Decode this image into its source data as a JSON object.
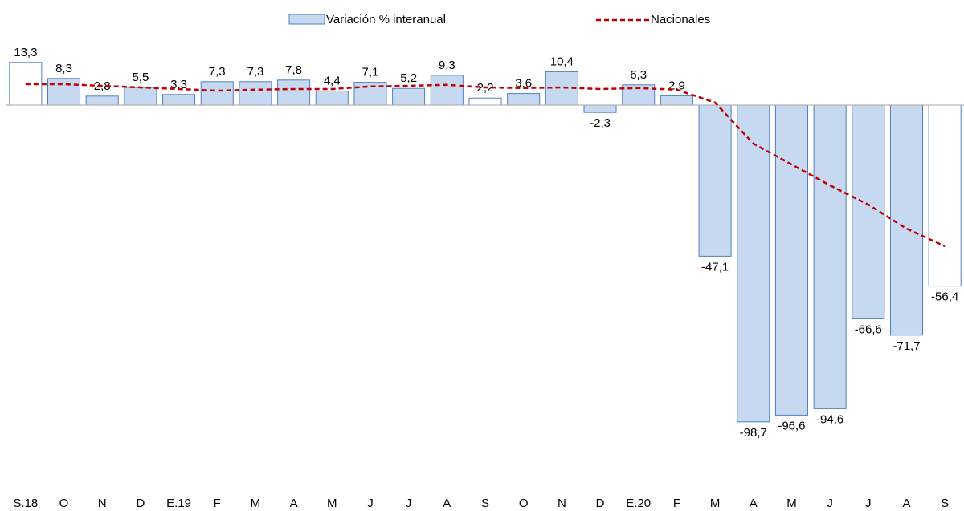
{
  "chart_data": {
    "type": "bar",
    "categories": [
      "S.18",
      "O",
      "N",
      "D",
      "E.19",
      "F",
      "M",
      "A",
      "M",
      "J",
      "J",
      "A",
      "S",
      "O",
      "N",
      "D",
      "E.20",
      "F",
      "M",
      "A",
      "M",
      "J",
      "J",
      "A",
      "S"
    ],
    "ylim": [
      -115,
      20
    ],
    "series": [
      {
        "name": "Variación % interanual",
        "type": "bar",
        "edge_color": "#4f81bd",
        "colors": [
          "#ffffff",
          "#c6d9f1",
          "#c6d9f1",
          "#c6d9f1",
          "#c6d9f1",
          "#c6d9f1",
          "#c6d9f1",
          "#c6d9f1",
          "#c6d9f1",
          "#c6d9f1",
          "#c6d9f1",
          "#c6d9f1",
          "#ffffff",
          "#c6d9f1",
          "#c6d9f1",
          "#c6d9f1",
          "#c6d9f1",
          "#c6d9f1",
          "#c6d9f1",
          "#c6d9f1",
          "#c6d9f1",
          "#c6d9f1",
          "#c6d9f1",
          "#c6d9f1",
          "#ffffff"
        ],
        "values": [
          13.3,
          8.3,
          2.8,
          5.5,
          3.3,
          7.3,
          7.3,
          7.8,
          4.4,
          7.1,
          5.2,
          9.3,
          2.2,
          3.6,
          10.4,
          -2.3,
          6.3,
          2.9,
          -47.1,
          -98.7,
          -96.6,
          -94.6,
          -66.6,
          -71.7,
          -56.4
        ],
        "value_labels": [
          "13,3",
          "8,3",
          "2,8",
          "5,5",
          "3,3",
          "7,3",
          "7,3",
          "7,8",
          "4,4",
          "7,1",
          "5,2",
          "9,3",
          "2,2",
          "3,6",
          "10,4",
          "-2,3",
          "6,3",
          "2,9",
          "-47,1",
          "-98,7",
          "-96,6",
          "-94,6",
          "-66,6",
          "-71,7",
          "-56,4"
        ]
      },
      {
        "name": "Nacionales",
        "type": "line",
        "color": "#c00000",
        "values": [
          6.5,
          6.5,
          6,
          5.5,
          5,
          4.5,
          4.8,
          5,
          5,
          5.8,
          6,
          6.3,
          5.5,
          5.3,
          5.5,
          5,
          5.3,
          4.8,
          0.8,
          -12,
          -18.5,
          -25,
          -31,
          -38.5,
          -44
        ]
      }
    ],
    "legend": "top"
  }
}
